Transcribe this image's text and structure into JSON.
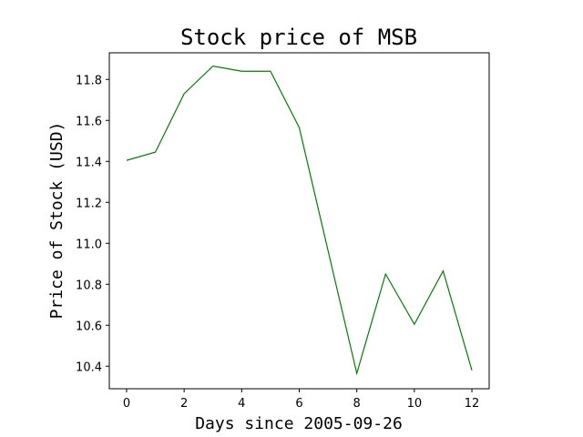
{
  "chart_data": {
    "type": "line",
    "title": "Stock price of MSB",
    "xlabel": "Days since 2005-09-26",
    "ylabel": "Price of Stock (USD)",
    "x": [
      0,
      1,
      2,
      3,
      4,
      5,
      6,
      7,
      8,
      9,
      10,
      11,
      12
    ],
    "series": [
      {
        "values": [
          11.405,
          11.445,
          11.73,
          11.865,
          11.84,
          11.84,
          11.565,
          10.965,
          10.365,
          10.85,
          10.605,
          10.865,
          10.38
        ],
        "color": "#008000"
      }
    ],
    "xticks": [
      "0",
      "2",
      "4",
      "6",
      "8",
      "10",
      "12"
    ],
    "yticks": [
      "10.4",
      "10.6",
      "10.8",
      "11.0",
      "11.2",
      "11.4",
      "11.6",
      "11.8"
    ],
    "xlim": [
      -0.6,
      12.6
    ],
    "ylim": [
      10.29,
      11.93
    ],
    "grid": false
  }
}
